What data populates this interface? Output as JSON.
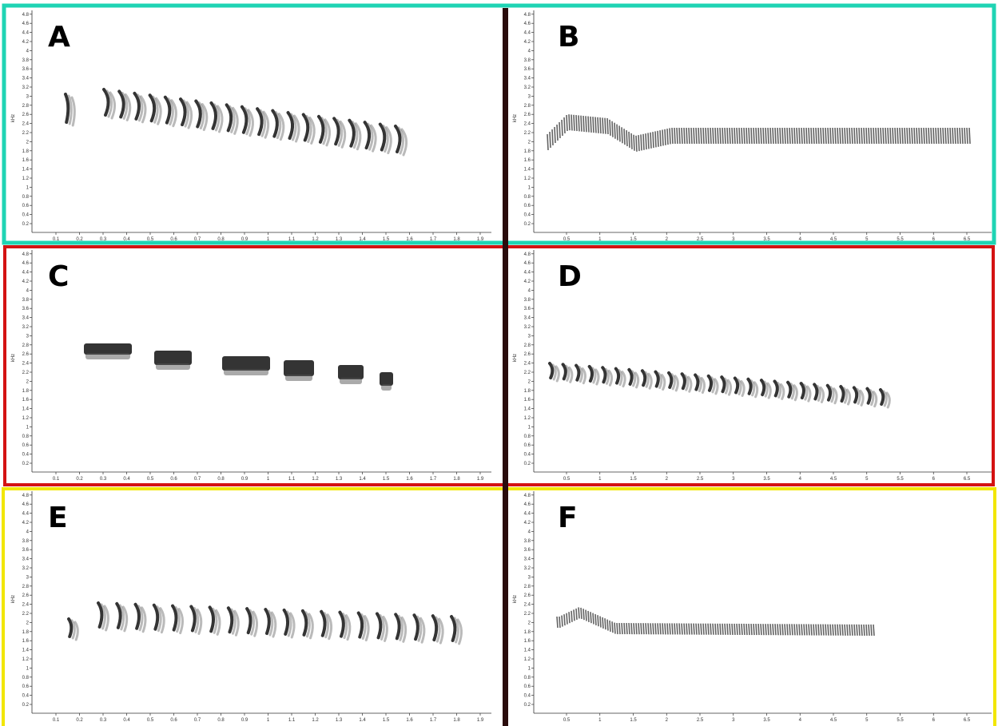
{
  "panels": [
    {
      "label": "A",
      "y_axis_label": "kHz",
      "yticks": [
        "0.2",
        "0.4",
        "0.6",
        "0.8",
        "1",
        "1.2",
        "1.4",
        "1.6",
        "1.8",
        "2",
        "2.2",
        "2.4",
        "2.6",
        "2.8",
        "3",
        "3.2",
        "3.4",
        "3.6",
        "3.8",
        "4",
        "4.2",
        "4.4",
        "4.6",
        "4.8"
      ],
      "xticks": [
        "0.1",
        "0.2",
        "0.3",
        "0.4",
        "0.5",
        "0.6",
        "0.7",
        "0.8",
        "0.9",
        "1",
        "1.1",
        "1.2",
        "1.3",
        "1.4",
        "1.5",
        "1.6",
        "1.7",
        "1.8",
        "1.9"
      ]
    },
    {
      "label": "B",
      "y_axis_label": "kHz",
      "yticks": [
        "0.2",
        "0.4",
        "0.6",
        "0.8",
        "1",
        "1.2",
        "1.4",
        "1.6",
        "1.8",
        "2",
        "2.2",
        "2.4",
        "2.6",
        "2.8",
        "3",
        "3.2",
        "3.4",
        "3.6",
        "3.8",
        "4",
        "4.2",
        "4.4",
        "4.6",
        "4.8"
      ],
      "xticks": [
        "0.5",
        "1",
        "1.5",
        "2",
        "2.5",
        "3",
        "3.5",
        "4",
        "4.5",
        "5",
        "5.5",
        "6",
        "6.5"
      ]
    },
    {
      "label": "C",
      "y_axis_label": "kHz",
      "yticks": [
        "0.2",
        "0.4",
        "0.6",
        "0.8",
        "1",
        "1.2",
        "1.4",
        "1.6",
        "1.8",
        "2",
        "2.2",
        "2.4",
        "2.6",
        "2.8",
        "3",
        "3.2",
        "3.4",
        "3.6",
        "3.8",
        "4",
        "4.2",
        "4.4",
        "4.6",
        "4.8"
      ],
      "xticks": [
        "0.1",
        "0.2",
        "0.3",
        "0.4",
        "0.5",
        "0.6",
        "0.7",
        "0.8",
        "0.9",
        "1",
        "1.1",
        "1.2",
        "1.3",
        "1.4",
        "1.5",
        "1.6",
        "1.7",
        "1.8",
        "1.9"
      ]
    },
    {
      "label": "D",
      "y_axis_label": "kHz",
      "yticks": [
        "0.2",
        "0.4",
        "0.6",
        "0.8",
        "1",
        "1.2",
        "1.4",
        "1.6",
        "1.8",
        "2",
        "2.2",
        "2.4",
        "2.6",
        "2.8",
        "3",
        "3.2",
        "3.4",
        "3.6",
        "3.8",
        "4",
        "4.2",
        "4.4",
        "4.6",
        "4.8"
      ],
      "xticks": [
        "0.5",
        "1",
        "1.5",
        "2",
        "2.5",
        "3",
        "3.5",
        "4",
        "4.5",
        "5",
        "5.5",
        "6",
        "6.5"
      ]
    },
    {
      "label": "E",
      "y_axis_label": "kHz",
      "yticks": [
        "0.2",
        "0.4",
        "0.6",
        "0.8",
        "1",
        "1.2",
        "1.4",
        "1.6",
        "1.8",
        "2",
        "2.2",
        "2.4",
        "2.6",
        "2.8",
        "3",
        "3.2",
        "3.4",
        "3.6",
        "3.8",
        "4",
        "4.2",
        "4.4",
        "4.6",
        "4.8"
      ],
      "xticks": [
        "0.1",
        "0.2",
        "0.3",
        "0.4",
        "0.5",
        "0.6",
        "0.7",
        "0.8",
        "0.9",
        "1",
        "1.1",
        "1.2",
        "1.3",
        "1.4",
        "1.5",
        "1.6",
        "1.7",
        "1.8",
        "1.9"
      ]
    },
    {
      "label": "F",
      "y_axis_label": "kHz",
      "yticks": [
        "0.2",
        "0.4",
        "0.6",
        "0.8",
        "1",
        "1.2",
        "1.4",
        "1.6",
        "1.8",
        "2",
        "2.2",
        "2.4",
        "2.6",
        "2.8",
        "3",
        "3.2",
        "3.4",
        "3.6",
        "3.8",
        "4",
        "4.2",
        "4.4",
        "4.6",
        "4.8"
      ],
      "xticks": [
        "0.5",
        "1",
        "1.5",
        "2",
        "2.5",
        "3",
        "3.5",
        "4",
        "4.5",
        "5",
        "5.5",
        "6",
        "6.5"
      ]
    }
  ]
}
